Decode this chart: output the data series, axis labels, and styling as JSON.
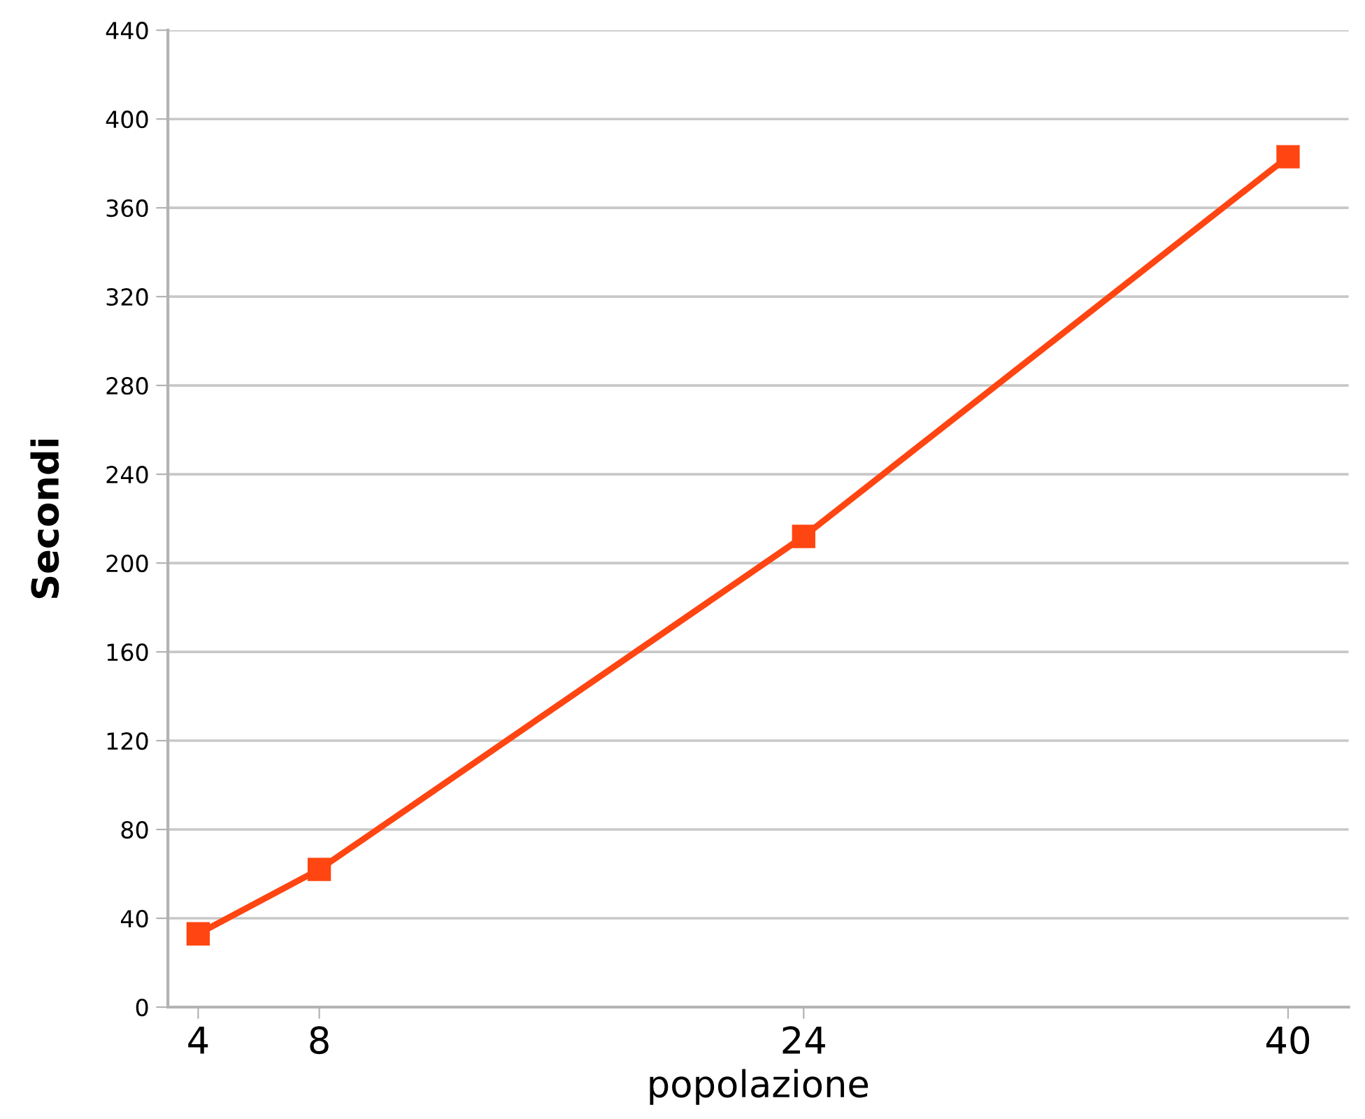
{
  "chart_data": {
    "type": "line",
    "xlabel": "popolazione",
    "ylabel": "Secondi",
    "x": [
      4,
      8,
      24,
      40
    ],
    "series": [
      {
        "color": "#ff4511",
        "values": [
          33,
          62,
          212,
          383
        ]
      }
    ],
    "xlim": [
      3,
      42
    ],
    "xticks": [
      4,
      8,
      24,
      40
    ],
    "ylim": [
      0,
      440
    ],
    "yticks": [
      0,
      40,
      80,
      120,
      160,
      200,
      240,
      280,
      320,
      360,
      400,
      440
    ],
    "grid": "y",
    "marker": "square",
    "line_style": "solid",
    "legend": false
  }
}
